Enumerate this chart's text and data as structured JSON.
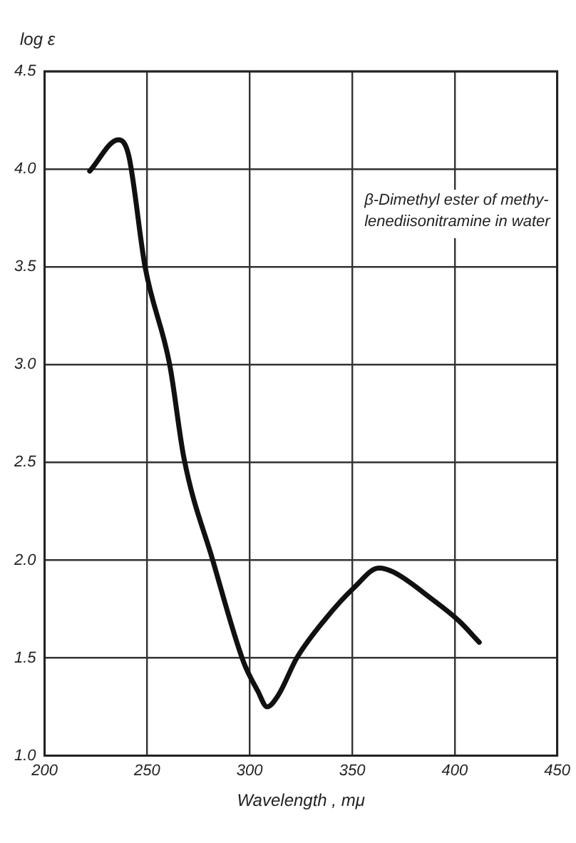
{
  "chart_data": {
    "type": "line",
    "xlabel": "Wavelength , mμ",
    "ylabel": "log ε",
    "annotations": [
      "β-Dimethyl ester of methy-\nlenediisonitramine in water"
    ],
    "x": [
      222,
      236,
      241,
      249,
      261,
      268,
      282,
      297,
      304,
      308.5,
      314,
      323,
      337,
      351,
      363,
      370,
      389,
      402,
      412
    ],
    "series": [
      {
        "color": "#111111",
        "values": [
          3.99,
          4.15,
          4.07,
          3.5,
          3.0,
          2.52,
          2.0,
          1.48,
          1.33,
          1.25,
          1.31,
          1.5,
          1.7,
          1.86,
          1.96,
          1.94,
          1.8,
          1.69,
          1.58
        ]
      }
    ],
    "xlim": [
      200,
      450
    ],
    "xticks": [
      200,
      250,
      300,
      350,
      400,
      450
    ],
    "ylim": [
      1,
      4.5
    ],
    "yticks": [
      {
        "value": 1,
        "label": "1.0"
      },
      1.5,
      {
        "value": 2,
        "label": "2.0"
      },
      2.5,
      {
        "value": 3,
        "label": "3.0"
      },
      3.5,
      {
        "value": 4,
        "label": "4.0"
      },
      4.5
    ],
    "grid": true,
    "legend": false,
    "marker": "none",
    "line_style": "solid"
  }
}
